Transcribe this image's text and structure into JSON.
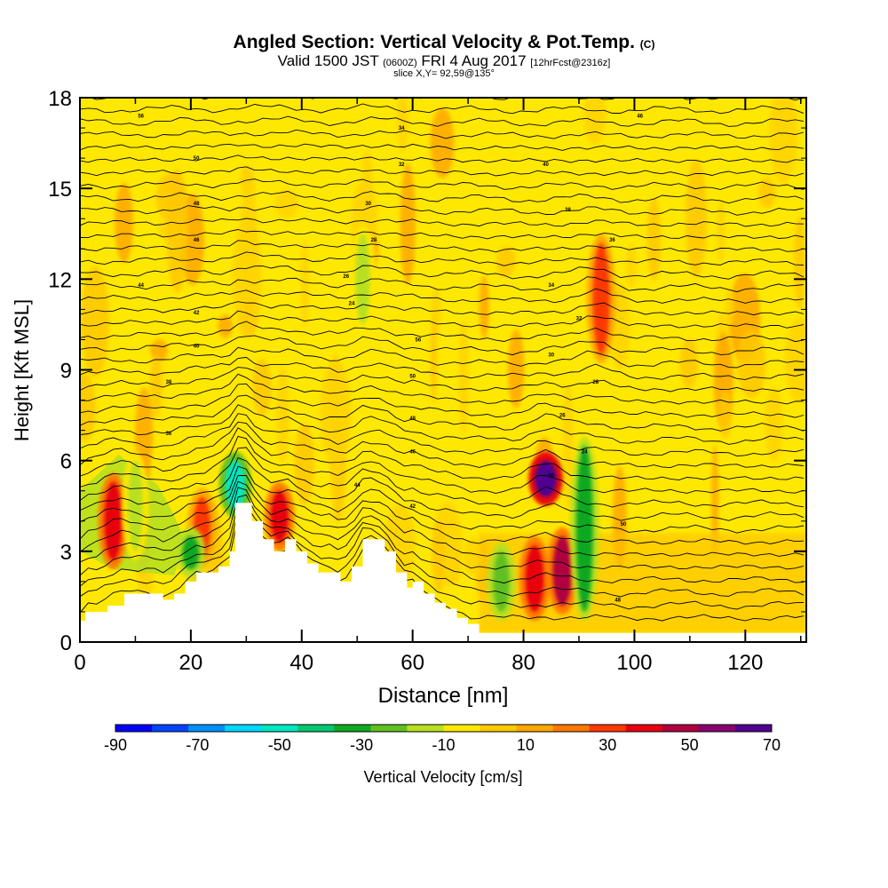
{
  "title": {
    "main": "Angled Section: Vertical Velocity & Pot.Temp.",
    "unit": "(C)"
  },
  "subtitle": {
    "valid": "Valid 1500 JST",
    "utc": "(0600Z)",
    "date": "FRI 4 Aug 2017",
    "forecast": "[12hrFcst@2316z]"
  },
  "slice_label": "slice X,Y= 92,59@135°",
  "colors": {
    "background": "#ffe800",
    "terrain": "#ffffff",
    "contour": "#000000",
    "colorbar": [
      "#0000ff",
      "#0044ff",
      "#0090ff",
      "#00d8ff",
      "#00e8c0",
      "#00c870",
      "#10a820",
      "#60c020",
      "#b8e020",
      "#ffe800",
      "#ffc800",
      "#ffa800",
      "#ff7800",
      "#ff3800",
      "#e80010",
      "#b00040",
      "#880070",
      "#500090"
    ]
  },
  "chart_data": {
    "type": "heatmap",
    "xlabel": "Distance [nm]",
    "ylabel": "Height [Kft MSL]",
    "xlim": [
      0,
      131
    ],
    "ylim": [
      0,
      18
    ],
    "x_ticks": [
      "0",
      "20",
      "40",
      "60",
      "80",
      "100",
      "120"
    ],
    "y_ticks": [
      "0",
      "3",
      "6",
      "9",
      "12",
      "15",
      "18"
    ],
    "colorbar": {
      "label": "Vertical Velocity [cm/s]",
      "range": [
        -90,
        70
      ],
      "tick_labels": [
        "-90",
        "-70",
        "-50",
        "-30",
        "-10",
        "10",
        "30",
        "50",
        "70"
      ]
    },
    "terrain_profile": {
      "x": [
        0,
        1,
        3,
        5,
        8,
        13,
        15,
        17,
        19,
        21,
        23,
        25,
        27,
        28,
        30,
        31,
        33,
        35,
        37,
        39,
        41,
        43,
        45,
        47,
        49,
        51,
        53,
        55,
        57,
        59,
        60,
        62,
        64,
        66,
        68,
        70,
        72,
        131
      ],
      "height": [
        0.7,
        1.0,
        1.0,
        1.2,
        1.6,
        1.6,
        1.4,
        1.6,
        2.0,
        2.3,
        2.3,
        2.5,
        3.0,
        4.6,
        4.6,
        4.0,
        3.4,
        3.0,
        3.4,
        3.0,
        2.6,
        2.3,
        2.3,
        2.0,
        2.5,
        3.4,
        3.4,
        3.0,
        2.3,
        1.8,
        2.0,
        1.6,
        1.3,
        1.1,
        0.8,
        0.6,
        0.3,
        0.3
      ]
    },
    "updrafts": [
      {
        "x": 6,
        "y_range": [
          2.7,
          5.3
        ],
        "w": 35
      },
      {
        "x": 22,
        "y_range": [
          2.8,
          4.8
        ],
        "w": 30
      },
      {
        "x": 36,
        "y_range": [
          3.3,
          5.0
        ],
        "w": 35
      },
      {
        "x": 84,
        "y_range": [
          4.8,
          6.0
        ],
        "w": 65
      },
      {
        "x": 82,
        "y_range": [
          1.0,
          3.2
        ],
        "w": 40
      },
      {
        "x": 87,
        "y_range": [
          1.2,
          3.5
        ],
        "w": 45
      },
      {
        "x": 94,
        "y_range": [
          9.5,
          13.2
        ],
        "w": 30
      }
    ],
    "downdrafts": [
      {
        "x": 10,
        "y_range": [
          3.0,
          6.0
        ],
        "w": -15
      },
      {
        "x": 20,
        "y_range": [
          2.4,
          3.5
        ],
        "w": -30
      },
      {
        "x": 28,
        "y_range": [
          4.4,
          6.0
        ],
        "w": -50
      },
      {
        "x": 76,
        "y_range": [
          1.0,
          3.0
        ],
        "w": -25
      },
      {
        "x": 91,
        "y_range": [
          1.0,
          6.5
        ],
        "w": -30
      },
      {
        "x": 51,
        "y_range": [
          10.5,
          13.5
        ],
        "w": -15
      }
    ],
    "contour_labels": [
      "56",
      "50",
      "48",
      "46",
      "44",
      "42",
      "40",
      "38",
      "36",
      "34",
      "32",
      "30",
      "28",
      "26",
      "24"
    ]
  }
}
